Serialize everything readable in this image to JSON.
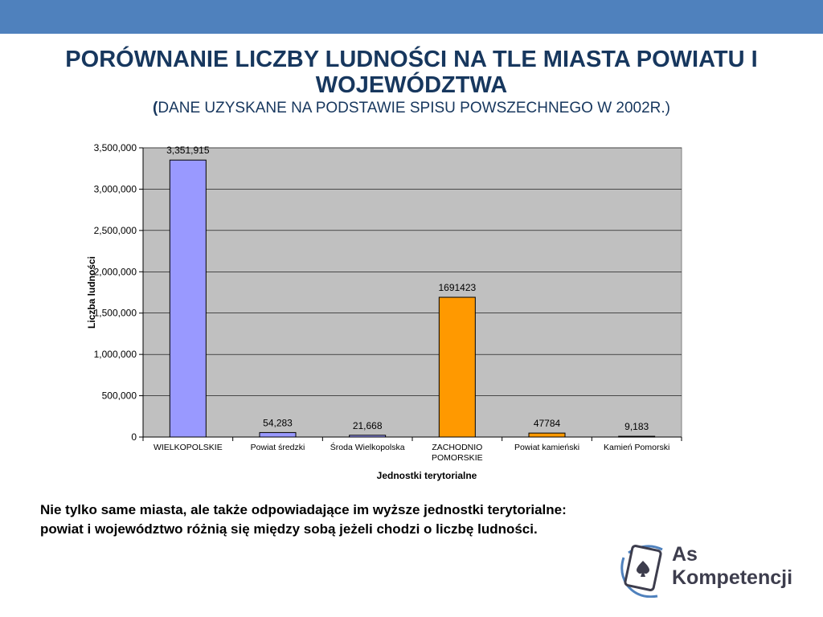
{
  "slide": {
    "title_line1": "Porównanie liczby ludności na tle miasta powiatu i województwa",
    "subtitle_open": "(",
    "subtitle_text": "dane uzyskane na podstawie spisu powszechnego w 2002r.)",
    "caption": "Nie tylko same miasta, ale także odpowiadające im wyższe jednostki terytorialne: powiat i województwo różnią się między sobą jeżeli chodzi o liczbę ludności."
  },
  "logo": {
    "line1": "As",
    "line2": "Kompetencji",
    "icon": "spade-card-icon"
  },
  "colors": {
    "band": "#4f81bd",
    "title": "#17375e",
    "plot_bg": "#c0c0c0",
    "series_blue": "#9999ff",
    "series_orange": "#ff9900"
  },
  "chart_data": {
    "type": "bar",
    "xlabel": "Jednostki terytorialne",
    "ylabel": "Liczba ludności",
    "ylim": [
      0,
      3500000
    ],
    "yticks": [
      0,
      500000,
      1000000,
      1500000,
      2000000,
      2500000,
      3000000,
      3500000
    ],
    "ytick_labels": [
      "0",
      "500,000",
      "1,000,000",
      "1,500,000",
      "2,000,000",
      "2,500,000",
      "3,000,000",
      "3,500,000"
    ],
    "grid": true,
    "categories": [
      [
        "WIELKOPOLSKIE"
      ],
      [
        "Powiat średzki"
      ],
      [
        "Środa Wielkopolska"
      ],
      [
        "ZACHODNIO",
        "POMORSKIE"
      ],
      [
        "Powiat kamieński"
      ],
      [
        "Kamień Pomorski"
      ]
    ],
    "values": [
      3351915,
      54283,
      21668,
      1691423,
      47784,
      9183
    ],
    "data_labels": [
      "3,351,915",
      "54,283",
      "21,668",
      "1691423",
      "47784",
      "9,183"
    ],
    "bar_colors": [
      "#9999ff",
      "#9999ff",
      "#9999ff",
      "#ff9900",
      "#ff9900",
      "#9999ff"
    ]
  }
}
